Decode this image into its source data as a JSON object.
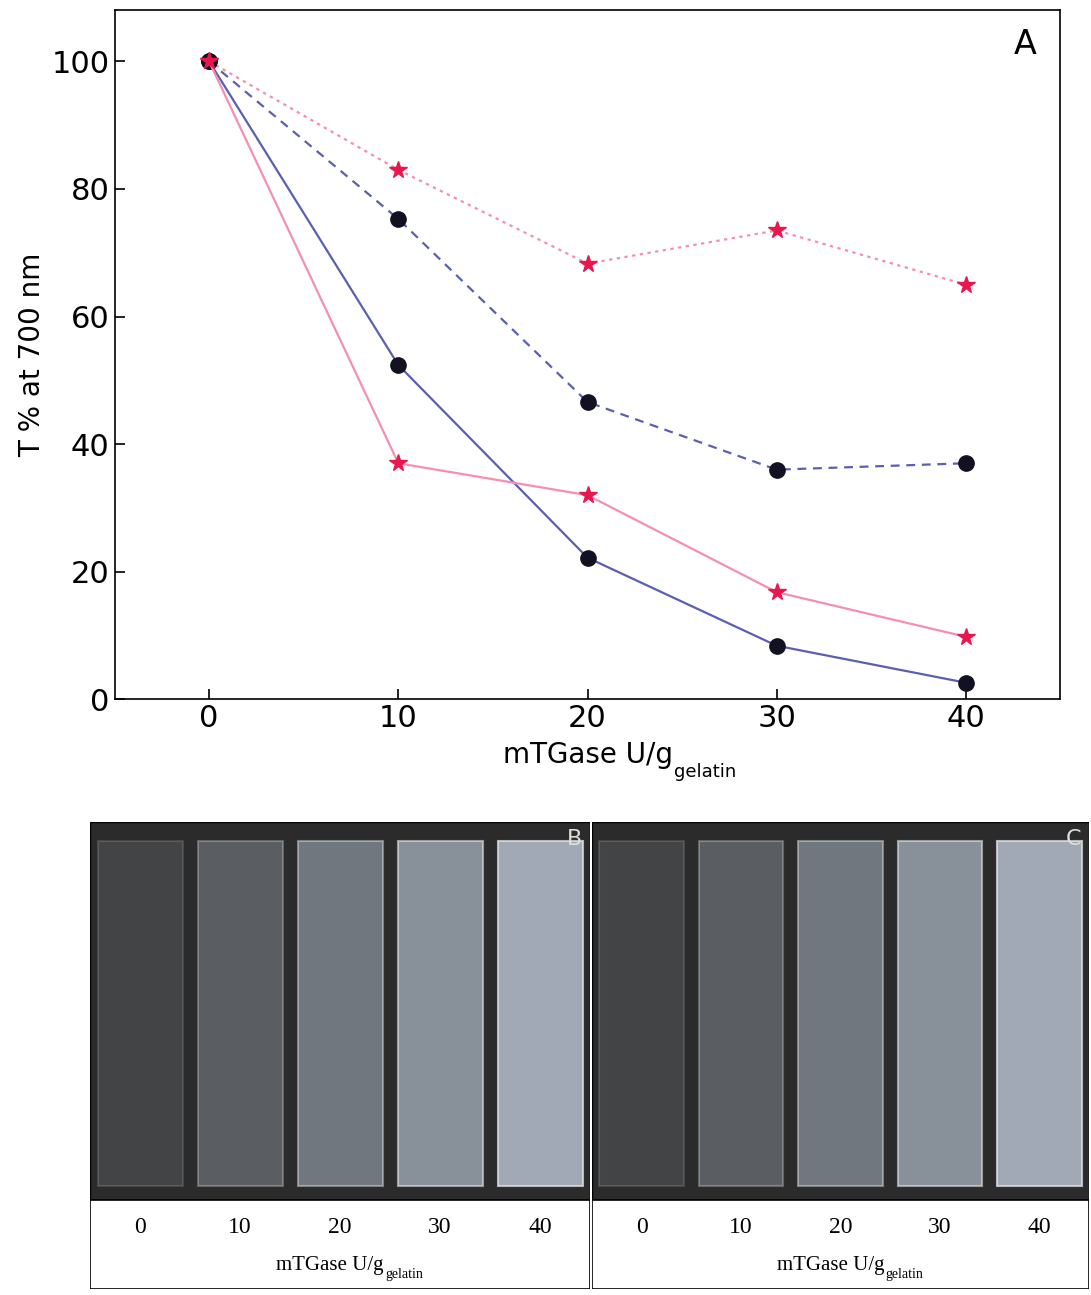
{
  "chart_data": {
    "type": "line",
    "title": "A",
    "xlabel": "mTGase U/g",
    "xlabel_subscript": "gelatin",
    "ylabel": "T % at 700 nm",
    "x": [
      0,
      10,
      20,
      30,
      40
    ],
    "series": [
      {
        "color": "#f48fb1",
        "marker": "star",
        "line_style": "dotted",
        "values": [
          100,
          83,
          68.3,
          73.5,
          65
        ]
      },
      {
        "color": "#5a5fb0",
        "marker": "circle",
        "line_style": "dashed",
        "values": [
          100,
          75.3,
          46.6,
          36,
          37
        ]
      },
      {
        "color": "#5a5fb0",
        "marker": "circle",
        "line_style": "solid",
        "values": [
          100,
          52.4,
          22.2,
          8.4,
          2.6
        ]
      },
      {
        "color": "#f48fb1",
        "marker": "star",
        "line_style": "solid",
        "values": [
          100,
          37,
          32,
          16.8,
          9.8
        ]
      }
    ],
    "xlim": [
      -5,
      45
    ],
    "xticks": [
      0,
      10,
      20,
      30,
      40
    ],
    "ylim": [
      0,
      108
    ],
    "yticks": [
      0,
      20,
      40,
      60,
      80,
      100
    ]
  },
  "panels": [
    {
      "label": "B",
      "categories": [
        0,
        10,
        20,
        30,
        40
      ],
      "xlabel": "mTGase U/g",
      "xlabel_subscript": "gelatin"
    },
    {
      "label": "C",
      "categories": [
        0,
        10,
        20,
        30,
        40
      ],
      "xlabel": "mTGase U/g",
      "xlabel_subscript": "gelatin"
    }
  ]
}
